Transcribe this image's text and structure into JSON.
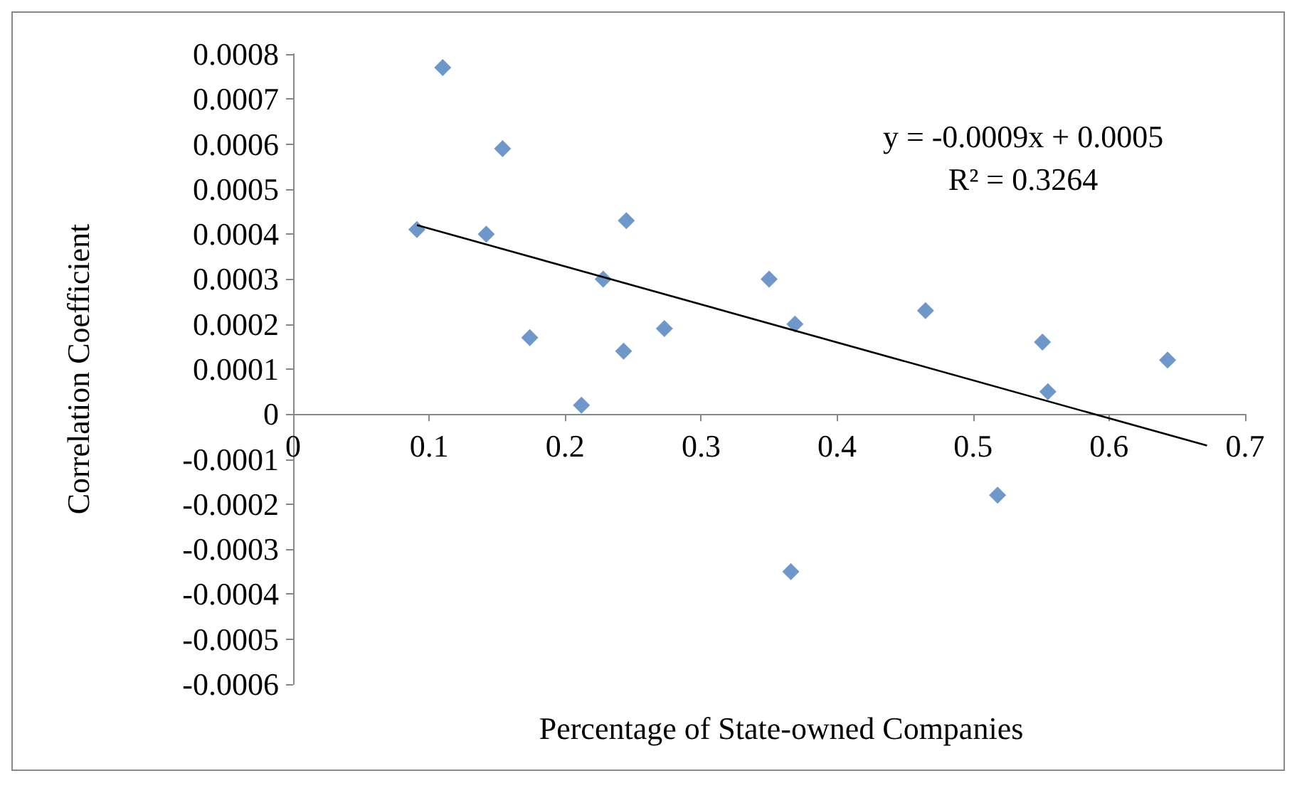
{
  "chart_data": {
    "type": "scatter",
    "xlabel": "Percentage of State-owned Companies",
    "ylabel": "Correlation Coefficient",
    "marker": "diamond",
    "grid": false,
    "xlim": [
      0,
      0.7
    ],
    "xticks": [
      0,
      0.1,
      0.2,
      0.3,
      0.4,
      0.5,
      0.6,
      0.7
    ],
    "ylim": [
      -0.0006,
      0.0008
    ],
    "yticks": [
      -0.0006,
      -0.0005,
      -0.0004,
      -0.0003,
      -0.0002,
      -0.0001,
      0,
      0.0001,
      0.0002,
      0.0003,
      0.0004,
      0.0005,
      0.0006,
      0.0007,
      0.0008
    ],
    "annotations": [
      "y = -0.0009x + 0.0005",
      "R² = 0.3264"
    ],
    "series": [
      {
        "type": "scatter",
        "color": "#4a7ebb",
        "x": [
          0.091,
          0.11,
          0.154,
          0.142,
          0.174,
          0.212,
          0.228,
          0.245,
          0.243,
          0.273,
          0.35,
          0.369,
          0.366,
          0.465,
          0.518,
          0.551,
          0.555,
          0.643
        ],
        "values": [
          0.00041,
          0.00077,
          0.00059,
          0.0004,
          0.00017,
          2e-05,
          0.0003,
          0.00043,
          0.00014,
          0.00019,
          0.0003,
          0.0002,
          -0.00035,
          0.00023,
          -0.00018,
          0.00016,
          5e-05,
          0.00012
        ]
      },
      {
        "type": "line",
        "color": "#000000",
        "marker": "none",
        "line_style": "solid",
        "x": [
          0.091,
          0.672
        ],
        "values": [
          0.00042,
          -7e-05
        ]
      }
    ]
  }
}
